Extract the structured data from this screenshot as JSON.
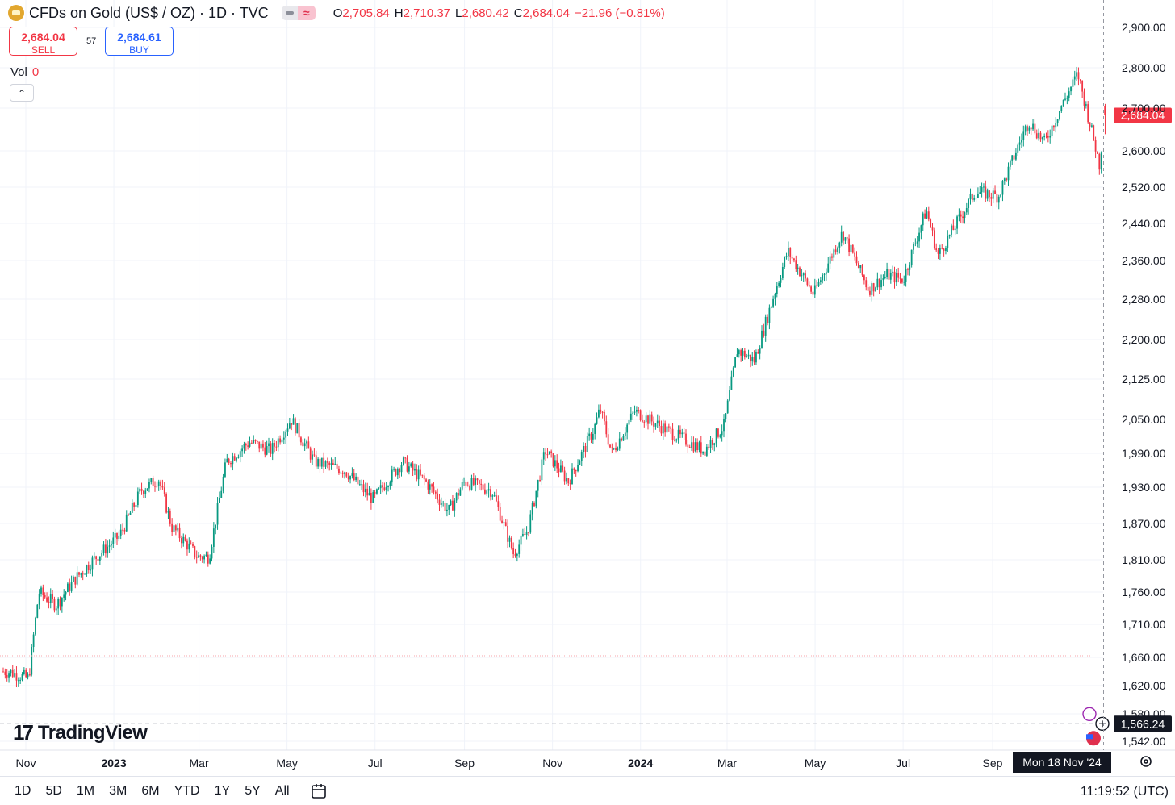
{
  "header": {
    "symbol": "CFDs on Gold (US$ / OZ) · 1D · TVC",
    "ohlc": [
      {
        "k": "O",
        "v": "2,705.84"
      },
      {
        "k": "H",
        "v": "2,710.37"
      },
      {
        "k": "L",
        "v": "2,680.42"
      },
      {
        "k": "C",
        "v": "2,684.04"
      }
    ],
    "change": "−21.96 (−0.81%)"
  },
  "trade": {
    "sell_price": "2,684.04",
    "sell_label": "SELL",
    "spread": "57",
    "buy_price": "2,684.61",
    "buy_label": "BUY"
  },
  "volume": {
    "label": "Vol",
    "value": "0"
  },
  "branding": {
    "logo_text": "TradingView"
  },
  "ranges": [
    "1D",
    "5D",
    "1M",
    "3M",
    "6M",
    "YTD",
    "1Y",
    "5Y",
    "All"
  ],
  "clock": "11:19:52 (UTC)",
  "colors": {
    "up": "#089981",
    "down": "#f23645",
    "grid": "#f0f3fa",
    "accent": "#2962ff"
  },
  "chart_data": {
    "type": "candlestick",
    "x_labels": [
      "Nov",
      "2023",
      "Mar",
      "May",
      "Jul",
      "Sep",
      "Nov",
      "2024",
      "Mar",
      "May",
      "Jul",
      "Sep"
    ],
    "y_ticks": [
      "2,900.00",
      "2,800.00",
      "2,700.00",
      "2,600.00",
      "2,520.00",
      "2,440.00",
      "2,360.00",
      "2,280.00",
      "2,200.00",
      "2,125.00",
      "2,050.00",
      "1,990.00",
      "1,930.00",
      "1,870.00",
      "1,810.00",
      "1,760.00",
      "1,710.00",
      "1,660.00",
      "1,620.00",
      "1,580.00",
      "1,542.00"
    ],
    "current_price_label": "2,684.04",
    "crosshair_price_label": "1,566.24",
    "crosshair_date_label": "Mon 18 Nov '24",
    "close_path": [
      [
        "2022-10-20",
        1640
      ],
      [
        "2022-11-03",
        1630
      ],
      [
        "2022-11-10",
        1760
      ],
      [
        "2022-11-22",
        1740
      ],
      [
        "2022-12-05",
        1780
      ],
      [
        "2022-12-20",
        1815
      ],
      [
        "2023-01-05",
        1850
      ],
      [
        "2023-01-20",
        1925
      ],
      [
        "2023-02-01",
        1945
      ],
      [
        "2023-02-10",
        1865
      ],
      [
        "2023-02-28",
        1815
      ],
      [
        "2023-03-08",
        1815
      ],
      [
        "2023-03-20",
        1975
      ],
      [
        "2023-04-05",
        2010
      ],
      [
        "2023-04-20",
        1995
      ],
      [
        "2023-05-04",
        2050
      ],
      [
        "2023-05-20",
        1975
      ],
      [
        "2023-06-10",
        1960
      ],
      [
        "2023-06-25",
        1920
      ],
      [
        "2023-06-30",
        1910
      ],
      [
        "2023-07-20",
        1975
      ],
      [
        "2023-08-05",
        1940
      ],
      [
        "2023-08-21",
        1890
      ],
      [
        "2023-09-01",
        1940
      ],
      [
        "2023-09-20",
        1925
      ],
      [
        "2023-10-05",
        1820
      ],
      [
        "2023-10-15",
        1860
      ],
      [
        "2023-10-27",
        1995
      ],
      [
        "2023-11-12",
        1940
      ],
      [
        "2023-11-30",
        2035
      ],
      [
        "2023-12-04",
        2070
      ],
      [
        "2023-12-12",
        1990
      ],
      [
        "2023-12-28",
        2065
      ],
      [
        "2024-01-20",
        2030
      ],
      [
        "2024-02-14",
        1995
      ],
      [
        "2024-02-28",
        2040
      ],
      [
        "2024-03-08",
        2180
      ],
      [
        "2024-03-20",
        2160
      ],
      [
        "2024-04-12",
        2380
      ],
      [
        "2024-04-30",
        2290
      ],
      [
        "2024-05-20",
        2420
      ],
      [
        "2024-06-07",
        2300
      ],
      [
        "2024-06-20",
        2330
      ],
      [
        "2024-07-01",
        2320
      ],
      [
        "2024-07-17",
        2470
      ],
      [
        "2024-07-25",
        2370
      ],
      [
        "2024-08-20",
        2510
      ],
      [
        "2024-09-05",
        2500
      ],
      [
        "2024-09-26",
        2670
      ],
      [
        "2024-10-07",
        2620
      ],
      [
        "2024-10-30",
        2785
      ],
      [
        "2024-11-14",
        2570
      ],
      [
        "2024-11-18",
        2684
      ]
    ],
    "last_candle": {
      "date": "2024-11-18",
      "open": 2705.84,
      "high": 2710.37,
      "low": 2680.42,
      "close": 2684.04
    },
    "ylim": [
      1530,
      2930
    ],
    "grid": true
  }
}
